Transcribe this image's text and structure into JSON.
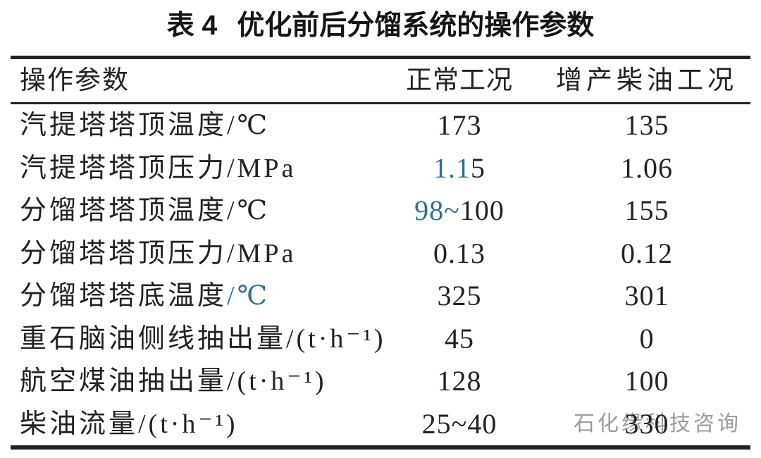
{
  "title": {
    "label": "表 4",
    "text": "优化前后分馏系统的操作参数"
  },
  "colors": {
    "accent_blue": "#2f6f92",
    "text_dark": "#222222",
    "rule_dark": "#232323",
    "watermark_gray": "#9c9c9c"
  },
  "table": {
    "headers": {
      "param": "操作参数",
      "normal": "正常工况",
      "diesel": "增产柴油工况"
    },
    "rows": [
      {
        "label": "汽提塔塔顶温度/℃",
        "label_blue": "",
        "normal_blue": "",
        "normal": "173",
        "diesel": "135"
      },
      {
        "label": "汽提塔塔顶压力/MPa",
        "label_blue": "",
        "normal_blue": "1.1",
        "normal": "5",
        "diesel": "1.06"
      },
      {
        "label": "分馏塔塔顶温度/℃",
        "label_blue": "",
        "normal_blue": "98~",
        "normal": "100",
        "diesel": "155"
      },
      {
        "label": "分馏塔塔顶压力/MPa",
        "label_blue": "",
        "normal_blue": "",
        "normal": "0.13",
        "diesel": "0.12"
      },
      {
        "label": "分馏塔塔底温度",
        "label_blue": "/℃",
        "normal_blue": "",
        "normal": "325",
        "diesel": "301"
      },
      {
        "label": "重石脑油侧线抽出量/(t·h⁻¹)",
        "label_blue": "",
        "normal_blue": "",
        "normal": "45",
        "diesel": "0"
      },
      {
        "label": "航空煤油抽出量/(t·h⁻¹)",
        "label_blue": "",
        "normal_blue": "",
        "normal": "128",
        "diesel": "100"
      },
      {
        "label": "柴油流量/(t·h⁻¹)",
        "label_blue": "",
        "normal_blue": "",
        "normal": "25~40",
        "diesel": "330"
      }
    ]
  },
  "watermark": {
    "text": "石化缘科技咨询"
  }
}
